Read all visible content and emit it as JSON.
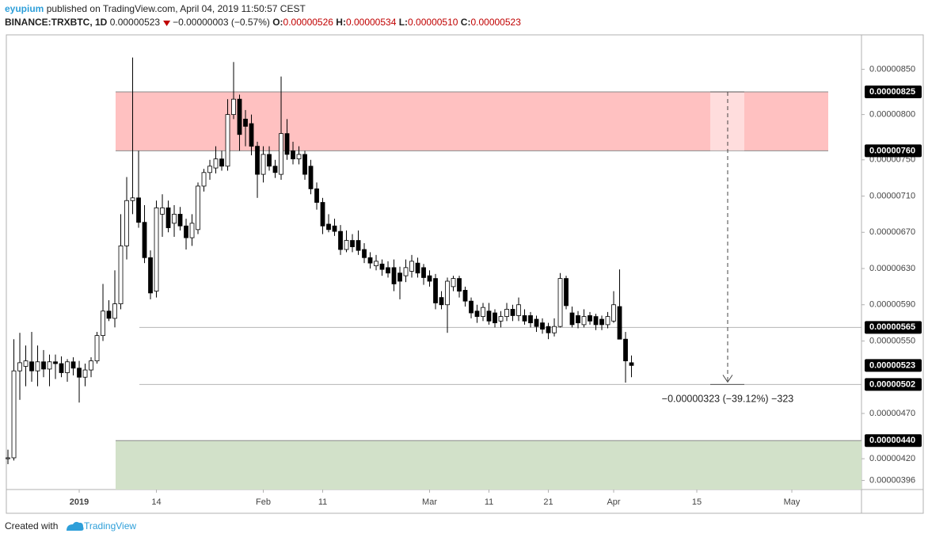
{
  "header": {
    "author": "eyupium",
    "published": "published on TradingView.com, April 04, 2019 11:50:57 CEST",
    "symbol": "BINANCE:TRXBTC, 1D",
    "price": "0.00000523",
    "change": "−0.00000003 (−0.57%)",
    "o_label": "O:",
    "o": "0.00000526",
    "h_label": "H:",
    "h": "0.00000534",
    "l_label": "L:",
    "l": "0.00000510",
    "c_label": "C:",
    "c": "0.00000523"
  },
  "footer": {
    "created": "Created with",
    "brand": "TradingView"
  },
  "chart_data": {
    "type": "candlestick",
    "x": [
      0,
      1,
      2,
      3,
      4,
      5,
      6,
      7,
      8,
      9,
      10,
      11,
      12,
      13,
      14,
      15,
      16,
      17,
      18,
      19,
      20,
      21,
      22,
      23,
      24,
      25,
      26,
      27,
      28,
      29,
      30,
      31,
      32,
      33,
      34,
      35,
      36,
      37,
      38,
      39,
      40,
      41,
      42,
      43,
      44,
      45,
      46,
      47,
      48,
      49,
      50,
      51,
      52,
      53,
      54,
      55,
      56,
      57,
      58,
      59,
      60,
      61,
      62,
      63,
      64,
      65,
      66,
      67,
      68,
      69,
      70,
      71,
      72,
      73,
      74,
      75,
      76,
      77,
      78,
      79,
      80,
      81,
      82,
      83,
      84,
      85,
      86,
      87,
      88,
      89,
      90,
      91,
      92,
      93,
      94,
      95,
      96,
      97,
      98,
      99,
      100,
      101,
      102,
      103,
      104,
      105
    ],
    "open": [
      4.2e-06,
      4.21e-06,
      5.17e-06,
      5.22e-06,
      5.27e-06,
      5.17e-06,
      5.27e-06,
      5.19e-06,
      5.27e-06,
      5.25e-06,
      5.15e-06,
      5.27e-06,
      5.2e-06,
      5.1e-06,
      5.18e-06,
      5.28e-06,
      5.56e-06,
      5.83e-06,
      5.75e-06,
      5.91e-06,
      6.55e-06,
      7.05e-06,
      7.08e-06,
      6.81e-06,
      6.42e-06,
      6.05e-06,
      6.9e-06,
      6.97e-06,
      6.8e-06,
      6.9e-06,
      6.77e-06,
      6.64e-06,
      6.73e-06,
      7.21e-06,
      7.36e-06,
      7.41e-06,
      7.51e-06,
      7.43e-06,
      8e-06,
      8.17e-06,
      7.95e-06,
      7.9e-06,
      7.65e-06,
      7.34e-06,
      7.56e-06,
      7.43e-06,
      7.34e-06,
      7.79e-06,
      7.6e-06,
      7.51e-06,
      7.56e-06,
      7.43e-06,
      7.18e-06,
      7.03e-06,
      6.79e-06,
      6.77e-06,
      6.71e-06,
      6.51e-06,
      6.61e-06,
      6.61e-06,
      6.51e-06,
      6.42e-06,
      6.33e-06,
      6.35e-06,
      6.31e-06,
      6.31e-06,
      6.25e-06,
      6.22e-06,
      6.27e-06,
      6.36e-06,
      6.31e-06,
      6.22e-06,
      6.19e-06,
      5.98e-06,
      5.9e-06,
      6.1e-06,
      6.19e-06,
      6.06e-06,
      5.94e-06,
      5.83e-06,
      5.77e-06,
      5.83e-06,
      5.81e-06,
      5.72e-06,
      5.77e-06,
      5.85e-06,
      5.78e-06,
      5.78e-06,
      5.78e-06,
      5.74e-06,
      5.7e-06,
      5.66e-06,
      5.59e-06,
      5.66e-06,
      6.19e-06,
      5.81e-06,
      5.78e-06,
      5.68e-06,
      5.78e-06,
      5.77e-06,
      5.74e-06,
      5.68e-06,
      5.72e-06,
      5.88e-06,
      5.52e-06,
      5.26e-06
    ],
    "high": [
      4.3e-06,
      5.52e-06,
      5.59e-06,
      5.45e-06,
      5.6e-06,
      5.45e-06,
      5.4e-06,
      5.35e-06,
      5.35e-06,
      5.33e-06,
      5.3e-06,
      5.32e-06,
      5.28e-06,
      5.25e-06,
      5.32e-06,
      5.6e-06,
      6.13e-06,
      5.95e-06,
      6.28e-06,
      6.9e-06,
      7.31e-06,
      8.63e-06,
      7.6e-06,
      7e-06,
      6.5e-06,
      7.05e-06,
      7.12e-06,
      7.05e-06,
      7e-06,
      6.98e-06,
      6.85e-06,
      6.9e-06,
      7.25e-06,
      7.4e-06,
      7.5e-06,
      7.65e-06,
      7.6e-06,
      8.17e-06,
      8.58e-06,
      8.22e-06,
      8.05e-06,
      8e-06,
      7.7e-06,
      7.65e-06,
      7.65e-06,
      7.5e-06,
      8.42e-06,
      7.95e-06,
      7.7e-06,
      7.65e-06,
      7.6e-06,
      7.5e-06,
      7.25e-06,
      7.08e-06,
      6.9e-06,
      6.85e-06,
      6.78e-06,
      6.72e-06,
      6.68e-06,
      6.72e-06,
      6.58e-06,
      6.48e-06,
      6.45e-06,
      6.4e-06,
      6.38e-06,
      6.4e-06,
      6.32e-06,
      6.4e-06,
      6.45e-06,
      6.42e-06,
      6.35e-06,
      6.28e-06,
      6.24e-06,
      6.05e-06,
      6.2e-06,
      6.22e-06,
      6.22e-06,
      6.1e-06,
      5.98e-06,
      5.9e-06,
      5.92e-06,
      5.92e-06,
      5.85e-06,
      5.83e-06,
      5.92e-06,
      5.9e-06,
      5.98e-06,
      5.85e-06,
      5.82e-06,
      5.78e-06,
      5.75e-06,
      5.7e-06,
      5.75e-06,
      6.25e-06,
      6.22e-06,
      5.88e-06,
      5.83e-06,
      5.85e-06,
      5.82e-06,
      5.8e-06,
      5.78e-06,
      5.82e-06,
      6.05e-06,
      6.29e-06,
      5.6e-06,
      5.34e-06
    ],
    "low": [
      4.14e-06,
      4.18e-06,
      4.85e-06,
      5e-06,
      5.05e-06,
      5e-06,
      5.1e-06,
      5e-06,
      5.08e-06,
      5.1e-06,
      5.05e-06,
      5.12e-06,
      4.82e-06,
      5e-06,
      5.1e-06,
      5.25e-06,
      5.5e-06,
      5.72e-06,
      5.65e-06,
      5.85e-06,
      6.4e-06,
      6.9e-06,
      6.75e-06,
      6.36e-06,
      5.96e-06,
      5.98e-06,
      6.65e-06,
      6.7e-06,
      6.65e-06,
      6.72e-06,
      6.51e-06,
      6.55e-06,
      6.68e-06,
      7.15e-06,
      7.28e-06,
      7.35e-06,
      7.38e-06,
      7.38e-06,
      7.95e-06,
      7.6e-06,
      7.65e-06,
      7.55e-06,
      7.08e-06,
      7.25e-06,
      7.38e-06,
      7.3e-06,
      7.28e-06,
      7.5e-06,
      7.45e-06,
      7.45e-06,
      7.28e-06,
      7.12e-06,
      6.95e-06,
      6.68e-06,
      6.7e-06,
      6.66e-06,
      6.45e-06,
      6.48e-06,
      6.48e-06,
      6.45e-06,
      6.36e-06,
      6.3e-06,
      6.28e-06,
      6.22e-06,
      6.2e-06,
      6.05e-06,
      5.96e-06,
      6.15e-06,
      6.2e-06,
      6.2e-06,
      6.12e-06,
      6.1e-06,
      5.85e-06,
      5.85e-06,
      5.59e-06,
      6.05e-06,
      5.98e-06,
      5.88e-06,
      5.75e-06,
      5.7e-06,
      5.72e-06,
      5.68e-06,
      5.65e-06,
      5.65e-06,
      5.72e-06,
      5.72e-06,
      5.72e-06,
      5.68e-06,
      5.65e-06,
      5.6e-06,
      5.58e-06,
      5.52e-06,
      5.55e-06,
      5.65e-06,
      5.85e-06,
      5.65e-06,
      5.64e-06,
      5.65e-06,
      5.68e-06,
      5.62e-06,
      5.62e-06,
      5.64e-06,
      5.7e-06,
      5.52e-06,
      5.04e-06,
      5.1e-06
    ],
    "close": [
      4.21e-06,
      5.17e-06,
      5.26e-06,
      5.28e-06,
      5.17e-06,
      5.27e-06,
      5.19e-06,
      5.27e-06,
      5.25e-06,
      5.15e-06,
      5.27e-06,
      5.2e-06,
      5.1e-06,
      5.18e-06,
      5.28e-06,
      5.56e-06,
      5.83e-06,
      5.75e-06,
      5.91e-06,
      6.55e-06,
      7.05e-06,
      7.08e-06,
      6.81e-06,
      6.42e-06,
      6.03e-06,
      6.97e-06,
      6.97e-06,
      6.75e-06,
      6.9e-06,
      6.77e-06,
      6.64e-06,
      6.8e-06,
      7.21e-06,
      7.36e-06,
      7.43e-06,
      7.51e-06,
      7.43e-06,
      8e-06,
      8.17e-06,
      7.78e-06,
      7.87e-06,
      7.65e-06,
      7.34e-06,
      7.56e-06,
      7.43e-06,
      7.36e-06,
      7.79e-06,
      7.56e-06,
      7.51e-06,
      7.56e-06,
      7.34e-06,
      7.18e-06,
      7.03e-06,
      6.77e-06,
      6.73e-06,
      6.71e-06,
      6.51e-06,
      6.61e-06,
      6.54e-06,
      6.5e-06,
      6.42e-06,
      6.36e-06,
      6.38e-06,
      6.29e-06,
      6.25e-06,
      6.13e-06,
      6.16e-06,
      6.31e-06,
      6.38e-06,
      6.25e-06,
      6.2e-06,
      6.16e-06,
      5.92e-06,
      5.9e-06,
      6.16e-06,
      6.19e-06,
      6.05e-06,
      5.94e-06,
      5.81e-06,
      5.77e-06,
      5.87e-06,
      5.72e-06,
      5.7e-06,
      5.77e-06,
      5.85e-06,
      5.78e-06,
      5.9e-06,
      5.72e-06,
      5.7e-06,
      5.66e-06,
      5.63e-06,
      5.59e-06,
      5.66e-06,
      6.19e-06,
      5.89e-06,
      5.68e-06,
      5.7e-06,
      5.77e-06,
      5.72e-06,
      5.68e-06,
      5.68e-06,
      5.77e-06,
      5.9e-06,
      5.52e-06,
      5.28e-06,
      5.23e-06
    ],
    "up_color": "#ffffff",
    "down_color": "#000000",
    "xlim": [
      -0.27,
      143.73
    ],
    "xticks": [
      {
        "value": 12,
        "label": "2019"
      },
      {
        "value": 25,
        "label": "14"
      },
      {
        "value": 43,
        "label": "Feb"
      },
      {
        "value": 53,
        "label": "11"
      },
      {
        "value": 71,
        "label": "Mar"
      },
      {
        "value": 81,
        "label": "11"
      },
      {
        "value": 91,
        "label": "21"
      },
      {
        "value": 102,
        "label": "Apr"
      },
      {
        "value": 116,
        "label": "15"
      },
      {
        "value": 132,
        "label": "May"
      }
    ],
    "ylim": [
      3.86e-06,
      8.88e-06
    ],
    "yticks": [
      {
        "value": 8.5e-06,
        "label": "0.00000850"
      },
      {
        "value": 8e-06,
        "label": "0.00000800"
      },
      {
        "value": 7.5e-06,
        "label": "0.00000750"
      },
      {
        "value": 7.1e-06,
        "label": "0.00000710"
      },
      {
        "value": 6.7e-06,
        "label": "0.00000670"
      },
      {
        "value": 6.3e-06,
        "label": "0.00000630"
      },
      {
        "value": 5.9e-06,
        "label": "0.00000590"
      },
      {
        "value": 5.5e-06,
        "label": "0.00000550"
      },
      {
        "value": 4.7e-06,
        "label": "0.00000470"
      },
      {
        "value": 4.2e-06,
        "label": "0.00000420"
      },
      {
        "value": 3.96e-06,
        "label": "0.00000396"
      }
    ],
    "grid": false,
    "zones": [
      {
        "low": 7.6e-06,
        "high": 8.25e-06,
        "color": "#ffc1c1"
      },
      {
        "high": 4.4e-06,
        "color": "#d2e1c9"
      }
    ],
    "levels": [
      5.65e-06,
      5.02e-06
    ],
    "price_labels": [
      {
        "value": 8.25e-06,
        "label": "0.00000825"
      },
      {
        "value": 7.6e-06,
        "label": "0.00000760"
      },
      {
        "value": 5.65e-06,
        "label": "0.00000565"
      },
      {
        "value": 5.23e-06,
        "label": "0.00000523"
      },
      {
        "value": 5.02e-06,
        "label": "0.00000502"
      },
      {
        "value": 4.4e-06,
        "label": "0.00000440"
      }
    ],
    "measure": {
      "from": 8.25e-06,
      "to": 5.02e-06,
      "label": "−0.00000323 (−39.12%) −323"
    }
  }
}
